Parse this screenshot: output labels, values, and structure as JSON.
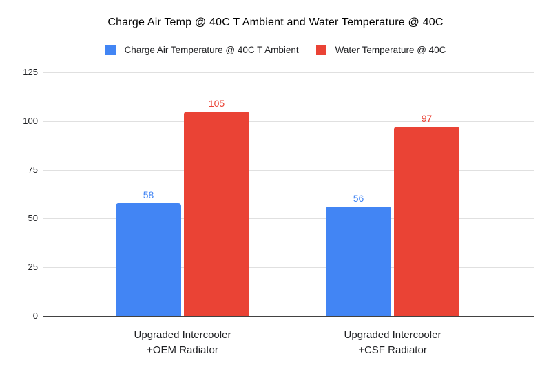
{
  "chart_data": {
    "type": "bar",
    "title": "Charge Air Temp @ 40C T Ambient and Water Temperature @ 40C",
    "categories": [
      "Upgraded Intercooler\n+OEM Radiator",
      "Upgraded Intercooler\n+CSF Radiator"
    ],
    "series": [
      {
        "name": "Charge Air Temperature @ 40C T Ambient",
        "color": "#4285F4",
        "values": [
          58,
          56
        ]
      },
      {
        "name": "Water Temperature @ 40C",
        "color": "#EA4335",
        "values": [
          105,
          97
        ]
      }
    ],
    "ylim": [
      0,
      125
    ],
    "yticks": [
      0,
      25,
      50,
      75,
      100,
      125
    ],
    "xlabel": "",
    "ylabel": "",
    "grid": true,
    "legend_position": "top",
    "data_labels": true,
    "colors": {
      "grid_line": "#e0e0e0",
      "axis_line": "#424242",
      "title_text": "#000000",
      "label_text": "#202124"
    }
  }
}
